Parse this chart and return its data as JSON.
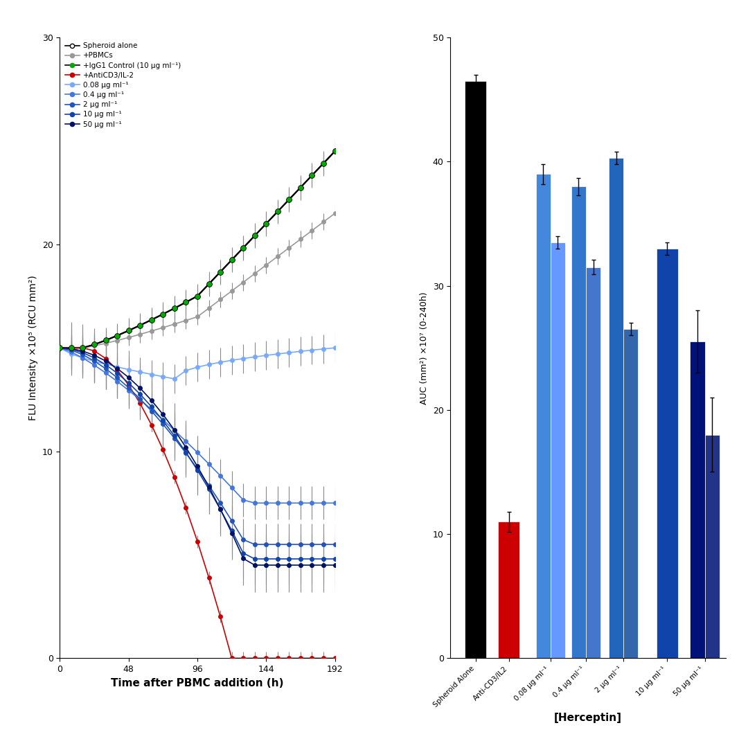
{
  "left_plot": {
    "xlabel": "Time after PBMC addition (h)",
    "ylabel": "FLU Intensity ×10⁵ (RCU mm²)",
    "xlim": [
      0,
      192
    ],
    "ylim": [
      0,
      30
    ],
    "yticks": [
      0,
      10,
      20,
      30
    ],
    "xticks": [
      0,
      48,
      96,
      144,
      192
    ]
  },
  "right_plot": {
    "xlabel": "[Herceptin]",
    "ylabel": "AUC (mm²) ×10⁷ (0-240h)",
    "ylim": [
      0,
      50
    ],
    "yticks": [
      0,
      10,
      20,
      30,
      40,
      50
    ],
    "categories": [
      "Spheroid Alone",
      "Anti-CD3/IL2",
      "0.08 μg ml⁻¹",
      "0.4 μg ml⁻¹",
      "2 μg ml⁻¹",
      "10 μg ml⁻¹",
      "50 μg ml⁻¹"
    ],
    "values": [
      46.5,
      11.0,
      39.0,
      38.0,
      40.3,
      33.0,
      25.5
    ],
    "errors": [
      0.5,
      0.8,
      0.8,
      0.7,
      0.5,
      0.5,
      2.5
    ],
    "bar2_values": [
      null,
      null,
      33.5,
      31.5,
      26.5,
      null,
      18.0
    ],
    "bar2_errors": [
      null,
      null,
      0.5,
      0.6,
      0.5,
      null,
      3.0
    ],
    "colors": [
      "#000000",
      "#cc0000",
      "#4488dd",
      "#3377cc",
      "#2266bb",
      "#1144aa",
      "#001177"
    ],
    "bar2_colors": [
      null,
      null,
      "#6699ff",
      "#4477cc",
      "#3366aa",
      null,
      "#223388"
    ]
  },
  "legend_labels": [
    "Spheroid alone",
    "+PBMCs",
    "+IgG1 Control (10 μg ml⁻¹)",
    "+AntiCD3/IL-2",
    "0.08 μg ml⁻¹",
    "0.4 μg ml⁻¹",
    "2 μg ml⁻¹",
    "10 μg ml⁻¹",
    "50 μg ml⁻¹"
  ],
  "legend_line_colors": [
    "#000000",
    "#999999",
    "#000000",
    "#cc0000",
    "#77aaff",
    "#4477dd",
    "#2255bb",
    "#1144aa",
    "#001166"
  ],
  "legend_marker_colors": [
    "white",
    "#999999",
    "#00aa00",
    "#cc0000",
    "#77aaff",
    "#4477dd",
    "#2255bb",
    "#1144aa",
    "#001166"
  ],
  "legend_marker_edges": [
    "#000000",
    "#999999",
    "#00aa00",
    "#cc0000",
    "#77aaff",
    "#4477dd",
    "#2255bb",
    "#1144aa",
    "#001166"
  ]
}
